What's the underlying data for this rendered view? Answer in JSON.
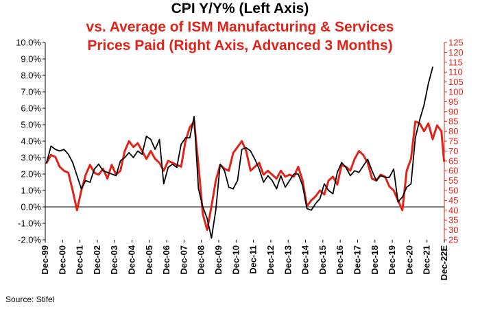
{
  "chart_data": {
    "type": "line",
    "title": "CPI Y/Y% (Left Axis)",
    "subtitle_line1": "vs. Average of ISM Manufacturing & Services",
    "subtitle_line2": "Prices Paid (Right Axis, Advanced 3 Months)",
    "source": "Source: Stifel",
    "left_axis": {
      "min": -2,
      "max": 10,
      "step": 1,
      "ticks": [
        "-2.0%",
        "-1.0%",
        "0.0%",
        "1.0%",
        "2.0%",
        "3.0%",
        "4.0%",
        "5.0%",
        "6.0%",
        "7.0%",
        "8.0%",
        "9.0%",
        "10.0%"
      ],
      "color": "#000000"
    },
    "right_axis": {
      "min": 25,
      "max": 125,
      "step": 5,
      "ticks": [
        "25",
        "30",
        "35",
        "40",
        "45",
        "50",
        "55",
        "60",
        "65",
        "70",
        "75",
        "80",
        "85",
        "90",
        "95",
        "100",
        "105",
        "110",
        "115",
        "120",
        "125"
      ],
      "color": "#e2231a"
    },
    "x_range": [
      1999.92,
      2022.92
    ],
    "x_ticks": [
      "Dec-99",
      "Dec-00",
      "Dec-01",
      "Dec-02",
      "Dec-03",
      "Dec-04",
      "Dec-05",
      "Dec-06",
      "Dec-07",
      "Dec-08",
      "Dec-09",
      "Dec-10",
      "Dec-11",
      "Dec-12",
      "Dec-13",
      "Dec-14",
      "Dec-15",
      "Dec-16",
      "Dec-17",
      "Dec-18",
      "Dec-19",
      "Dec-20",
      "Dec-21",
      "Dec-22E"
    ],
    "series": [
      {
        "name": "CPI Y/Y%",
        "axis": "left",
        "color": "#000000",
        "x": [
          2000.0,
          2000.25,
          2000.5,
          2000.75,
          2001.0,
          2001.25,
          2001.5,
          2001.75,
          2002.0,
          2002.25,
          2002.5,
          2002.75,
          2003.0,
          2003.25,
          2003.5,
          2003.75,
          2004.0,
          2004.25,
          2004.5,
          2004.75,
          2005.0,
          2005.25,
          2005.5,
          2005.75,
          2006.0,
          2006.25,
          2006.5,
          2006.75,
          2007.0,
          2007.25,
          2007.5,
          2007.75,
          2008.0,
          2008.25,
          2008.5,
          2008.75,
          2009.0,
          2009.25,
          2009.5,
          2009.75,
          2010.0,
          2010.25,
          2010.5,
          2010.75,
          2011.0,
          2011.25,
          2011.5,
          2011.75,
          2012.0,
          2012.25,
          2012.5,
          2012.75,
          2013.0,
          2013.25,
          2013.5,
          2013.75,
          2014.0,
          2014.25,
          2014.5,
          2014.75,
          2015.0,
          2015.25,
          2015.5,
          2015.75,
          2016.0,
          2016.25,
          2016.5,
          2016.75,
          2017.0,
          2017.25,
          2017.5,
          2017.75,
          2018.0,
          2018.25,
          2018.5,
          2018.75,
          2019.0,
          2019.25,
          2019.5,
          2019.75,
          2020.0,
          2020.25,
          2020.5,
          2020.75,
          2021.0,
          2021.25,
          2021.5,
          2021.75,
          2022.0,
          2022.25
        ],
        "values": [
          2.7,
          3.7,
          3.5,
          3.4,
          3.5,
          3.2,
          2.7,
          1.9,
          1.1,
          1.6,
          1.5,
          2.3,
          2.6,
          2.2,
          2.1,
          2.0,
          1.9,
          2.8,
          3.0,
          3.3,
          3.0,
          3.4,
          3.2,
          4.3,
          4.1,
          3.5,
          4.1,
          1.4,
          2.4,
          2.6,
          2.4,
          3.8,
          4.2,
          4.2,
          5.5,
          1.1,
          0.0,
          -0.7,
          -1.9,
          -0.2,
          2.6,
          2.2,
          1.2,
          1.1,
          1.6,
          3.5,
          3.6,
          3.4,
          2.9,
          2.3,
          1.5,
          1.9,
          1.6,
          1.1,
          1.9,
          1.2,
          1.6,
          2.0,
          2.0,
          1.3,
          -0.1,
          -0.2,
          0.2,
          0.5,
          1.4,
          1.0,
          0.8,
          2.1,
          2.7,
          2.4,
          1.9,
          2.2,
          2.1,
          2.5,
          2.9,
          2.2,
          1.6,
          1.9,
          1.8,
          1.8,
          2.3,
          0.3,
          0.6,
          1.2,
          1.4,
          4.2,
          5.3,
          6.2,
          7.5,
          8.5
        ]
      },
      {
        "name": "Average of ISM Manufacturing & Services Prices Paid",
        "axis": "right",
        "color": "#e2231a",
        "x": [
          2000.0,
          2000.25,
          2000.5,
          2000.75,
          2001.0,
          2001.25,
          2001.5,
          2001.75,
          2002.0,
          2002.25,
          2002.5,
          2002.75,
          2003.0,
          2003.25,
          2003.5,
          2003.75,
          2004.0,
          2004.25,
          2004.5,
          2004.75,
          2005.0,
          2005.25,
          2005.5,
          2005.75,
          2006.0,
          2006.25,
          2006.5,
          2006.75,
          2007.0,
          2007.25,
          2007.5,
          2007.75,
          2008.0,
          2008.25,
          2008.5,
          2008.75,
          2009.0,
          2009.25,
          2009.5,
          2009.75,
          2010.0,
          2010.25,
          2010.5,
          2010.75,
          2011.0,
          2011.25,
          2011.5,
          2011.75,
          2012.0,
          2012.25,
          2012.5,
          2012.75,
          2013.0,
          2013.25,
          2013.5,
          2013.75,
          2014.0,
          2014.25,
          2014.5,
          2014.75,
          2015.0,
          2015.25,
          2015.5,
          2015.75,
          2016.0,
          2016.25,
          2016.5,
          2016.75,
          2017.0,
          2017.25,
          2017.5,
          2017.75,
          2018.0,
          2018.25,
          2018.5,
          2018.75,
          2019.0,
          2019.25,
          2019.5,
          2019.75,
          2020.0,
          2020.25,
          2020.5,
          2020.75,
          2021.0,
          2021.25,
          2021.5,
          2021.75,
          2022.0,
          2022.25,
          2022.5,
          2022.75,
          2022.9
        ],
        "values": [
          64,
          68,
          67,
          62,
          60,
          59,
          50,
          40,
          50,
          58,
          63,
          59,
          58,
          61,
          56,
          63,
          58,
          60,
          70,
          75,
          72,
          74,
          70,
          66,
          70,
          66,
          64,
          60,
          65,
          64,
          63,
          62,
          75,
          82,
          85,
          63,
          38,
          30,
          42,
          55,
          63,
          61,
          60,
          69,
          72,
          75,
          70,
          60,
          62,
          64,
          58,
          60,
          58,
          56,
          60,
          57,
          58,
          57,
          62,
          55,
          42,
          45,
          47,
          50,
          48,
          55,
          57,
          53,
          63,
          62,
          60,
          66,
          70,
          68,
          64,
          56,
          55,
          58,
          57,
          52,
          50,
          45,
          40,
          60,
          66,
          85,
          84,
          80,
          84,
          76,
          83,
          80,
          65
        ]
      }
    ]
  }
}
